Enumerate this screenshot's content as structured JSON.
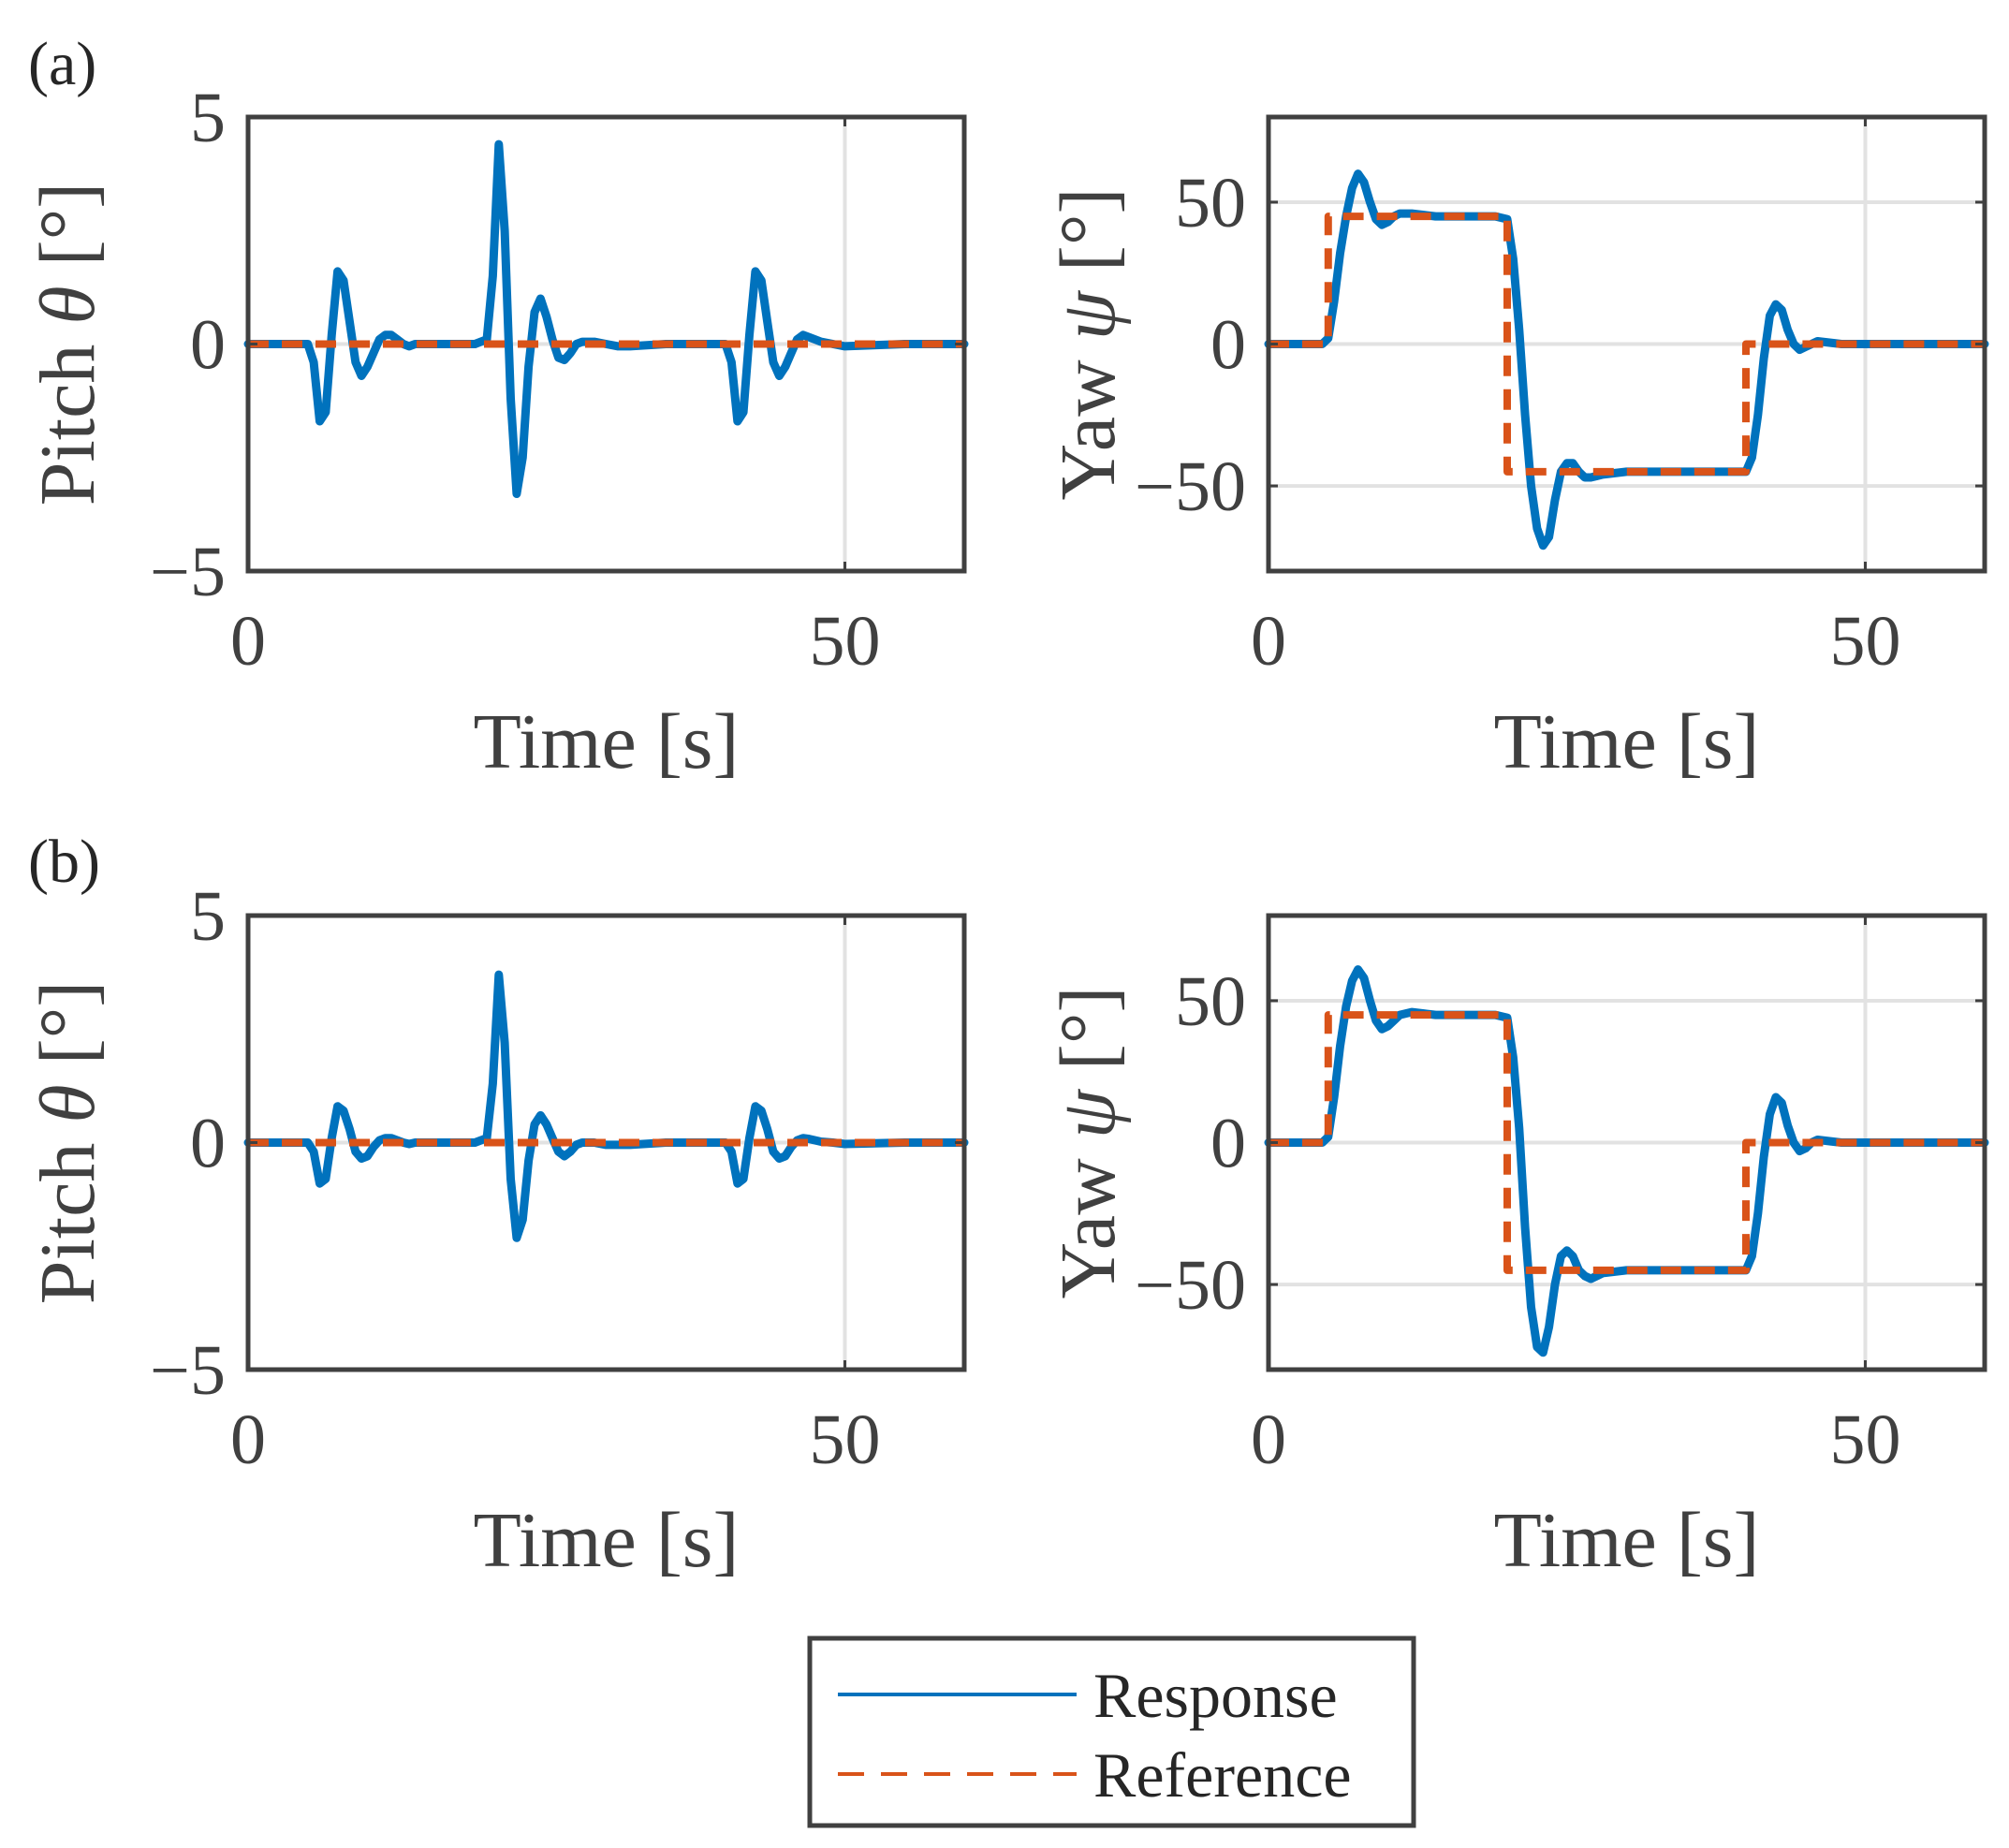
{
  "panel_labels": [
    "(a)",
    "(b)"
  ],
  "legend": {
    "items": [
      {
        "label": "Response",
        "color": "#0072BD",
        "style": "solid"
      },
      {
        "label": "Reference",
        "color": "#D95319",
        "style": "dashed"
      }
    ],
    "placement": "bottom-center"
  },
  "colors": {
    "response": "#0072BD",
    "reference": "#D95319",
    "grid": "#e2e2e2",
    "axes": "#404040"
  },
  "chart_data": [
    {
      "id": "a-pitch",
      "panel": "(a)",
      "type": "line",
      "xlabel": "Time [s]",
      "ylabel_prefix": "Pitch ",
      "ylabel_symbol": "θ",
      "ylabel_suffix": " [°]",
      "xlim": [
        0,
        60
      ],
      "ylim": [
        -5,
        5
      ],
      "xticks": [
        0,
        50
      ],
      "yticks": [
        -5,
        0,
        5
      ],
      "ytick_labels": [
        "−5",
        "0",
        "5"
      ],
      "xtick_labels": [
        "0",
        "50"
      ],
      "grid": true,
      "series": [
        {
          "name": "Response",
          "x": [
            0,
            5,
            5.5,
            6,
            6.5,
            7,
            7.5,
            8,
            8.5,
            9,
            9.5,
            10,
            10.5,
            11,
            11.5,
            12,
            12.5,
            13,
            13.5,
            14,
            15,
            16,
            17,
            18,
            19,
            20,
            20.5,
            21,
            21.5,
            22,
            22.5,
            23,
            23.5,
            24,
            24.5,
            25,
            25.5,
            26,
            26.5,
            27,
            27.5,
            28,
            29,
            30,
            31,
            32,
            35,
            40,
            40.5,
            41,
            41.5,
            42,
            42.5,
            43,
            43.5,
            44,
            44.5,
            45,
            45.5,
            46,
            46.5,
            47,
            48,
            49,
            50,
            55,
            60
          ],
          "y": [
            0,
            0,
            -0.4,
            -1.7,
            -1.5,
            0.2,
            1.6,
            1.4,
            0.5,
            -0.4,
            -0.7,
            -0.5,
            -0.2,
            0.1,
            0.2,
            0.2,
            0.1,
            0,
            -0.05,
            0,
            0,
            0,
            0,
            0,
            0,
            0.1,
            1.5,
            4.4,
            2.5,
            -1.2,
            -3.3,
            -2.5,
            -0.5,
            0.7,
            1.0,
            0.6,
            0.1,
            -0.3,
            -0.35,
            -0.2,
            0,
            0.05,
            0.05,
            0,
            -0.05,
            -0.05,
            0,
            0,
            -0.4,
            -1.7,
            -1.5,
            0.2,
            1.6,
            1.4,
            0.5,
            -0.4,
            -0.7,
            -0.5,
            -0.2,
            0.1,
            0.2,
            0.15,
            0.05,
            0,
            -0.05,
            0,
            0
          ]
        },
        {
          "name": "Reference",
          "x": [
            0,
            60
          ],
          "y": [
            0,
            0
          ]
        }
      ]
    },
    {
      "id": "a-yaw",
      "panel": "(a)",
      "type": "line",
      "xlabel": "Time [s]",
      "ylabel_prefix": "Yaw ",
      "ylabel_symbol": "ψ",
      "ylabel_suffix": " [°]",
      "xlim": [
        0,
        60
      ],
      "ylim": [
        -80,
        80
      ],
      "xticks": [
        0,
        50
      ],
      "yticks": [
        -50,
        0,
        50
      ],
      "ytick_labels": [
        "−50",
        "0",
        "50"
      ],
      "xtick_labels": [
        "0",
        "50"
      ],
      "grid": true,
      "series": [
        {
          "name": "Response",
          "x": [
            0,
            4.5,
            5,
            5.5,
            6,
            6.5,
            7,
            7.5,
            8,
            8.5,
            9,
            9.5,
            10,
            10.5,
            11,
            12,
            13,
            14,
            15,
            16,
            17,
            18,
            19,
            20,
            20.5,
            21,
            21.5,
            22,
            22.5,
            23,
            23.5,
            24,
            24.5,
            25,
            25.5,
            26,
            26.5,
            27,
            27.5,
            28,
            29,
            30,
            31,
            32,
            35,
            38,
            39,
            40,
            40.5,
            41,
            41.5,
            42,
            42.5,
            43,
            43.5,
            44,
            44.5,
            45,
            45.5,
            46,
            47,
            48,
            50,
            55,
            60
          ],
          "y": [
            0,
            0,
            2,
            15,
            32,
            45,
            55,
            60,
            57,
            50,
            44,
            42,
            43,
            45,
            46,
            46,
            45.5,
            45,
            45,
            45,
            45,
            45,
            45,
            44,
            30,
            5,
            -25,
            -50,
            -65,
            -71,
            -68,
            -55,
            -45,
            -42,
            -42,
            -45,
            -47,
            -47,
            -46.5,
            -46,
            -45.5,
            -45,
            -45,
            -45,
            -45,
            -45,
            -45,
            -45,
            -40,
            -25,
            -5,
            10,
            14,
            12,
            5,
            0,
            -2,
            -1,
            0,
            1,
            0.5,
            0,
            0,
            0,
            0
          ]
        },
        {
          "name": "Reference",
          "x": [
            0,
            5,
            5,
            20,
            20,
            40,
            40,
            60
          ],
          "y": [
            0,
            0,
            45,
            45,
            -45,
            -45,
            0,
            0
          ]
        }
      ]
    },
    {
      "id": "b-pitch",
      "panel": "(b)",
      "type": "line",
      "xlabel": "Time [s]",
      "ylabel_prefix": "Pitch ",
      "ylabel_symbol": "θ",
      "ylabel_suffix": " [°]",
      "xlim": [
        0,
        60
      ],
      "ylim": [
        -5,
        5
      ],
      "xticks": [
        0,
        50
      ],
      "yticks": [
        -5,
        0,
        5
      ],
      "ytick_labels": [
        "−5",
        "0",
        "5"
      ],
      "xtick_labels": [
        "0",
        "50"
      ],
      "grid": true,
      "series": [
        {
          "name": "Response",
          "x": [
            0,
            5,
            5.5,
            6,
            6.5,
            7,
            7.5,
            8,
            8.5,
            9,
            9.5,
            10,
            10.5,
            11,
            11.5,
            12,
            12.5,
            13,
            13.5,
            14,
            15,
            16,
            17,
            18,
            19,
            20,
            20.5,
            21,
            21.5,
            22,
            22.5,
            23,
            23.5,
            24,
            24.5,
            25,
            25.5,
            26,
            26.5,
            27,
            27.5,
            28,
            29,
            30,
            31,
            32,
            35,
            40,
            40.5,
            41,
            41.5,
            42,
            42.5,
            43,
            43.5,
            44,
            44.5,
            45,
            45.5,
            46,
            46.5,
            47,
            48,
            49,
            50,
            55,
            60
          ],
          "y": [
            0,
            0,
            -0.2,
            -0.9,
            -0.8,
            0.1,
            0.8,
            0.7,
            0.3,
            -0.2,
            -0.35,
            -0.3,
            -0.1,
            0.05,
            0.1,
            0.1,
            0.05,
            0,
            -0.03,
            0,
            0,
            0,
            0,
            0,
            0,
            0.1,
            1.3,
            3.7,
            2.2,
            -0.8,
            -2.1,
            -1.7,
            -0.4,
            0.4,
            0.6,
            0.4,
            0.1,
            -0.2,
            -0.3,
            -0.2,
            -0.05,
            0,
            0,
            -0.05,
            -0.05,
            -0.05,
            0,
            0,
            -0.2,
            -0.9,
            -0.8,
            0.1,
            0.8,
            0.7,
            0.3,
            -0.2,
            -0.35,
            -0.3,
            -0.1,
            0.05,
            0.1,
            0.08,
            0.02,
            0,
            -0.03,
            0,
            0
          ]
        },
        {
          "name": "Reference",
          "x": [
            0,
            60
          ],
          "y": [
            0,
            0
          ]
        }
      ]
    },
    {
      "id": "b-yaw",
      "panel": "(b)",
      "type": "line",
      "xlabel": "Time [s]",
      "ylabel_prefix": "Yaw ",
      "ylabel_symbol": "ψ",
      "ylabel_suffix": " [°]",
      "xlim": [
        0,
        60
      ],
      "ylim": [
        -80,
        80
      ],
      "xticks": [
        0,
        50
      ],
      "yticks": [
        -50,
        0,
        50
      ],
      "ytick_labels": [
        "−50",
        "0",
        "50"
      ],
      "xtick_labels": [
        "0",
        "50"
      ],
      "grid": true,
      "series": [
        {
          "name": "Response",
          "x": [
            0,
            4.5,
            5,
            5.5,
            6,
            6.5,
            7,
            7.5,
            8,
            8.5,
            9,
            9.5,
            10,
            10.5,
            11,
            12,
            13,
            14,
            15,
            16,
            17,
            18,
            19,
            20,
            20.5,
            21,
            21.5,
            22,
            22.5,
            23,
            23.5,
            24,
            24.5,
            25,
            25.5,
            26,
            26.5,
            27,
            27.5,
            28,
            29,
            30,
            31,
            32,
            35,
            38,
            39,
            40,
            40.5,
            41,
            41.5,
            42,
            42.5,
            43,
            43.5,
            44,
            44.5,
            45,
            45.5,
            46,
            47,
            48,
            50,
            55,
            60
          ],
          "y": [
            0,
            0,
            2,
            16,
            34,
            48,
            57,
            61,
            58,
            50,
            43,
            40,
            41,
            43,
            45,
            46,
            45.5,
            45,
            45,
            45,
            45,
            45,
            45,
            44,
            30,
            5,
            -30,
            -58,
            -72,
            -74,
            -65,
            -50,
            -40,
            -38,
            -40,
            -45,
            -47,
            -48,
            -47,
            -46,
            -45.5,
            -45,
            -45,
            -45,
            -45,
            -45,
            -45,
            -45,
            -40,
            -25,
            -5,
            10,
            16,
            14,
            6,
            0,
            -3,
            -2,
            0,
            1,
            0.5,
            0,
            0,
            0,
            0
          ]
        },
        {
          "name": "Reference",
          "x": [
            0,
            5,
            5,
            20,
            20,
            40,
            40,
            60
          ],
          "y": [
            0,
            0,
            45,
            45,
            -45,
            -45,
            0,
            0
          ]
        }
      ]
    }
  ]
}
